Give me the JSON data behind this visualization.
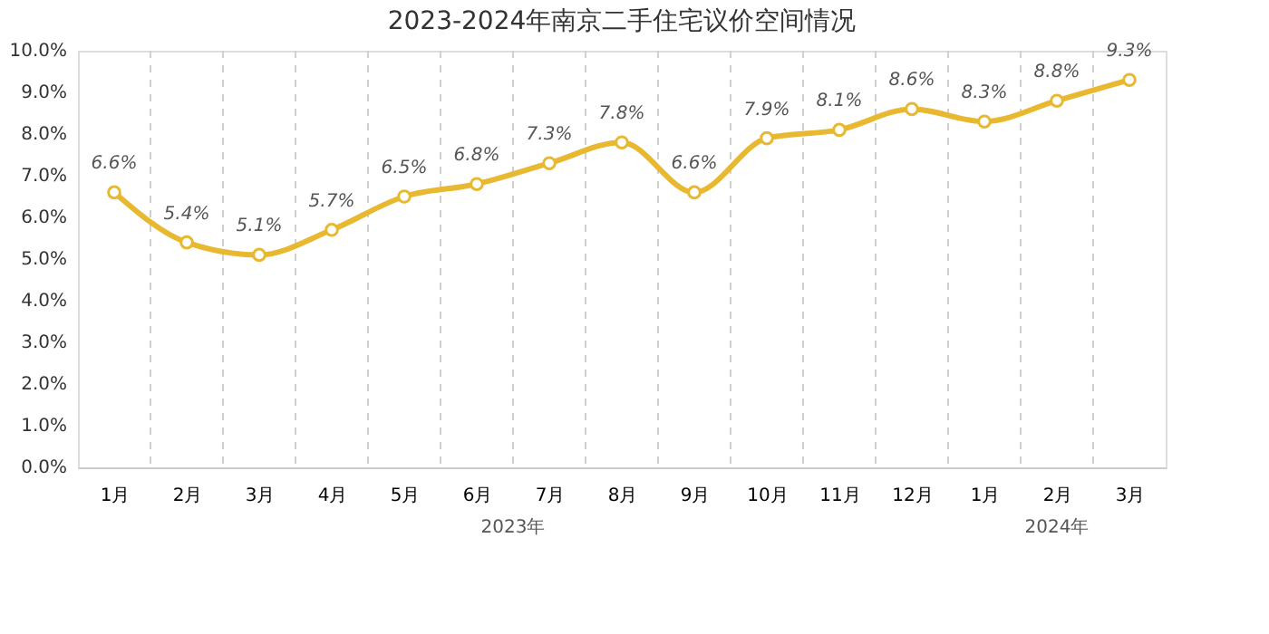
{
  "chart_data": {
    "type": "line",
    "title": "2023-2024年南京二手住宅议价空间情况",
    "categories": [
      "1月",
      "2月",
      "3月",
      "4月",
      "5月",
      "6月",
      "7月",
      "8月",
      "9月",
      "10月",
      "11月",
      "12月",
      "1月",
      "2月",
      "3月"
    ],
    "series": [
      {
        "color": "#e8b830",
        "values": [
          6.6,
          5.4,
          5.1,
          5.7,
          6.5,
          6.8,
          7.3,
          7.8,
          6.6,
          7.9,
          8.1,
          8.6,
          8.3,
          8.8,
          9.3
        ],
        "value_labels": [
          "6.6%",
          "5.4%",
          "5.1%",
          "5.7%",
          "6.5%",
          "6.8%",
          "7.3%",
          "7.8%",
          "6.6%",
          "7.9%",
          "8.1%",
          "8.6%",
          "8.3%",
          "8.8%",
          "9.3%"
        ]
      }
    ],
    "ylim": [
      0,
      10
    ],
    "yticks": [
      {
        "value": 0,
        "label": "0.0%"
      },
      {
        "value": 1,
        "label": "1.0%"
      },
      {
        "value": 2,
        "label": "2.0%"
      },
      {
        "value": 3,
        "label": "3.0%"
      },
      {
        "value": 4,
        "label": "4.0%"
      },
      {
        "value": 5,
        "label": "5.0%"
      },
      {
        "value": 6,
        "label": "6.0%"
      },
      {
        "value": 7,
        "label": "7.0%"
      },
      {
        "value": 8,
        "label": "8.0%"
      },
      {
        "value": 9,
        "label": "9.0%"
      },
      {
        "value": 10,
        "label": "10.0%"
      }
    ],
    "annotations": [
      "2023年",
      "2024年"
    ],
    "grid": "x",
    "marker": "circle",
    "line_style": "solid"
  }
}
